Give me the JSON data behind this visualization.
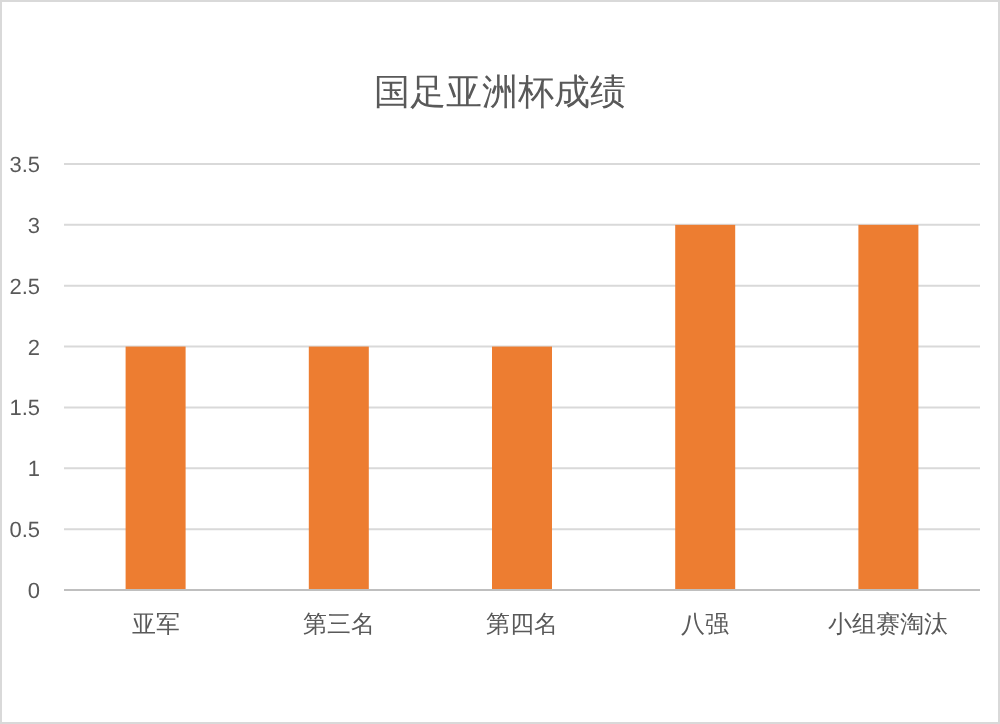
{
  "chart_data": {
    "type": "bar",
    "title": "国足亚洲杯成绩",
    "categories": [
      "亚军",
      "第三名",
      "第四名",
      "八强",
      "小组赛淘汰"
    ],
    "values": [
      2,
      2,
      2,
      3,
      3
    ],
    "color": "#ed7d31",
    "ylim": [
      0,
      3.5
    ],
    "yticks": [
      0,
      0.5,
      1,
      1.5,
      2,
      2.5,
      3,
      3.5
    ],
    "grid": "y"
  }
}
